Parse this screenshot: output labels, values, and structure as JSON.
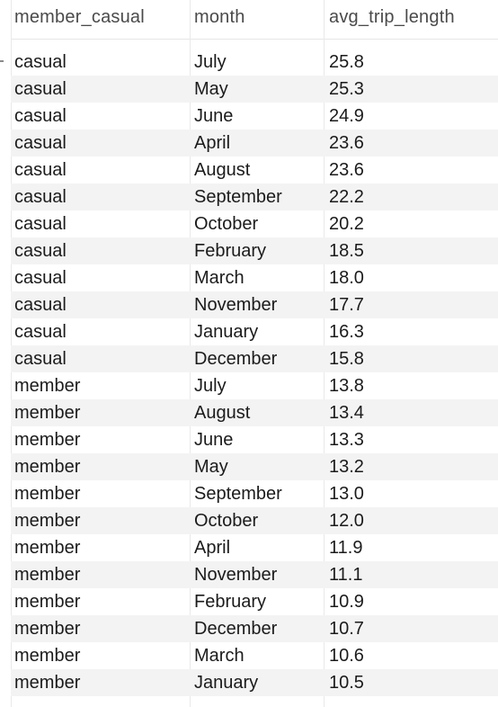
{
  "columns": [
    "member_casual",
    "month",
    "avg_trip_length"
  ],
  "rows": [
    [
      "casual",
      "July",
      "25.8"
    ],
    [
      "casual",
      "May",
      "25.3"
    ],
    [
      "casual",
      "June",
      "24.9"
    ],
    [
      "casual",
      "April",
      "23.6"
    ],
    [
      "casual",
      "August",
      "23.6"
    ],
    [
      "casual",
      "September",
      "22.2"
    ],
    [
      "casual",
      "October",
      "20.2"
    ],
    [
      "casual",
      "February",
      "18.5"
    ],
    [
      "casual",
      "March",
      "18.0"
    ],
    [
      "casual",
      "November",
      "17.7"
    ],
    [
      "casual",
      "January",
      "16.3"
    ],
    [
      "casual",
      "December",
      "15.8"
    ],
    [
      "member",
      "July",
      "13.8"
    ],
    [
      "member",
      "August",
      "13.4"
    ],
    [
      "member",
      "June",
      "13.3"
    ],
    [
      "member",
      "May",
      "13.2"
    ],
    [
      "member",
      "September",
      "13.0"
    ],
    [
      "member",
      "October",
      "12.0"
    ],
    [
      "member",
      "April",
      "11.9"
    ],
    [
      "member",
      "November",
      "11.1"
    ],
    [
      "member",
      "February",
      "10.9"
    ],
    [
      "member",
      "December",
      "10.7"
    ],
    [
      "member",
      "March",
      "10.6"
    ],
    [
      "member",
      "January",
      "10.5"
    ]
  ]
}
